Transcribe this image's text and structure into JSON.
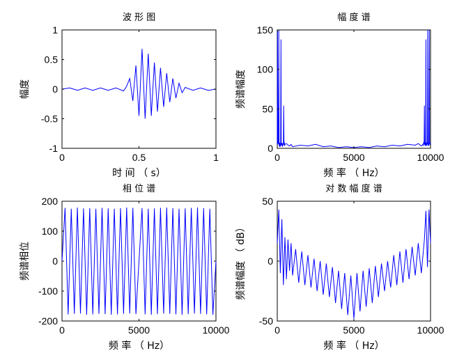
{
  "chart_data": [
    {
      "type": "line",
      "title": "波 形 图",
      "xlabel": "时 间 （ s）",
      "ylabel": "幅度",
      "xlim": [
        0,
        1
      ],
      "ylim": [
        -1,
        1
      ],
      "xticks": [
        "0",
        "0.5",
        "1"
      ],
      "xtick_values": [
        0,
        0.5,
        1
      ],
      "yticks": [
        "1",
        "0.5",
        "0",
        "-0.5",
        "-1"
      ],
      "ytick_values": [
        1,
        0.5,
        0,
        -0.5,
        -1
      ],
      "color": "#0000ff",
      "series": [
        {
          "x": [
            0,
            0.05,
            0.1,
            0.15,
            0.2,
            0.25,
            0.3,
            0.35,
            0.4,
            0.42,
            0.44,
            0.46,
            0.48,
            0.5,
            0.52,
            0.54,
            0.56,
            0.58,
            0.6,
            0.62,
            0.64,
            0.66,
            0.68,
            0.7,
            0.72,
            0.74,
            0.76,
            0.78,
            0.8,
            0.85,
            0.9,
            0.95,
            1
          ],
          "y": [
            0.0,
            0.02,
            -0.02,
            0.02,
            -0.02,
            0.02,
            -0.02,
            0.02,
            -0.03,
            0.05,
            0.18,
            -0.2,
            0.4,
            -0.45,
            0.68,
            -0.5,
            0.6,
            -0.45,
            0.45,
            -0.38,
            0.36,
            -0.3,
            0.27,
            -0.22,
            0.18,
            -0.15,
            0.1,
            -0.06,
            0.03,
            -0.02,
            0.02,
            -0.02,
            0.0
          ]
        }
      ]
    },
    {
      "type": "line",
      "title": "幅 度 谱",
      "xlabel": "频 率 （ Hz）",
      "ylabel": "频谱幅度",
      "xlim": [
        0,
        10000
      ],
      "ylim": [
        0,
        150
      ],
      "xticks": [
        "0",
        "5000",
        "10000"
      ],
      "xtick_values": [
        0,
        5000,
        10000
      ],
      "yticks": [
        "150",
        "100",
        "50",
        "0"
      ],
      "ytick_values": [
        150,
        100,
        50,
        0
      ],
      "color": "#0000ff",
      "series": [
        {
          "x": [
            0,
            20,
            40,
            60,
            80,
            100,
            120,
            140,
            160,
            180,
            200,
            220,
            240,
            260,
            280,
            300,
            320,
            340,
            360,
            380,
            400,
            420,
            440,
            460,
            480,
            500,
            600,
            700,
            800,
            900,
            1000,
            1500,
            2000,
            2500,
            3000,
            3500,
            4000,
            4500,
            5000,
            5500,
            6000,
            6500,
            7000,
            7500,
            8000,
            8500,
            9000,
            9200,
            9400,
            9500,
            9520,
            9540,
            9560,
            9580,
            9600,
            9620,
            9640,
            9660,
            9680,
            9700,
            9720,
            9740,
            9760,
            9780,
            9800,
            9820,
            9840,
            9860,
            9880,
            9900,
            9920,
            9940,
            9960,
            9980,
            10000
          ],
          "y": [
            5,
            150,
            5,
            8,
            6,
            150,
            4,
            3,
            7,
            2,
            3,
            6,
            138,
            4,
            5,
            3,
            7,
            2,
            4,
            5,
            6,
            54,
            4,
            8,
            3,
            5,
            6,
            4,
            3,
            5,
            2,
            4,
            3,
            5,
            2,
            3,
            1,
            2,
            1,
            2,
            1,
            3,
            2,
            4,
            3,
            5,
            4,
            6,
            3,
            5,
            4,
            6,
            8,
            5,
            54,
            4,
            7,
            3,
            5,
            138,
            4,
            6,
            3,
            8,
            5,
            150,
            4,
            6,
            3,
            8,
            150,
            6,
            5,
            7,
            5
          ]
        }
      ]
    },
    {
      "type": "line",
      "title": "相 位 谱",
      "xlabel": "频 率 （ Hz）",
      "ylabel": "频谱相位",
      "xlim": [
        0,
        10000
      ],
      "ylim": [
        -200,
        200
      ],
      "xticks": [
        "0",
        "5000",
        "10000"
      ],
      "xtick_values": [
        0,
        5000,
        10000
      ],
      "yticks": [
        "200",
        "100",
        "0",
        "-100",
        "-200"
      ],
      "ytick_values": [
        200,
        100,
        0,
        -100,
        -200
      ],
      "color": "#0000ff",
      "series": [
        {
          "x": [
            0,
            200,
            400,
            600,
            800,
            1000,
            1200,
            1400,
            1600,
            1800,
            2000,
            2200,
            2400,
            2600,
            2800,
            3000,
            3200,
            3400,
            3600,
            3800,
            4000,
            4200,
            4400,
            4600,
            4800,
            5000,
            5200,
            5400,
            5600,
            5800,
            6000,
            6200,
            6400,
            6600,
            6800,
            7000,
            7200,
            7400,
            7600,
            7800,
            8000,
            8200,
            8400,
            8600,
            8800,
            9000,
            9200,
            9400,
            9600,
            9800,
            10000
          ],
          "y": [
            0,
            178,
            -178,
            175,
            -176,
            179,
            -175,
            176,
            -179,
            177,
            -178,
            175,
            -176,
            178,
            -177,
            176,
            -179,
            175,
            -178,
            177,
            -176,
            179,
            -175,
            178,
            -177,
            0,
            177,
            -178,
            175,
            -179,
            176,
            -177,
            178,
            -175,
            179,
            -176,
            177,
            -178,
            175,
            -179,
            176,
            -177,
            178,
            -175,
            179,
            -176,
            177,
            -178,
            175,
            -179,
            0
          ]
        }
      ]
    },
    {
      "type": "line",
      "title": "对 数 幅 度 谱",
      "xlabel": "频 率 （ Hz）",
      "ylabel": "频谱幅度 （ dB）",
      "xlim": [
        0,
        10000
      ],
      "ylim": [
        -50,
        50
      ],
      "xticks": [
        "0",
        "5000",
        "10000"
      ],
      "xtick_values": [
        0,
        5000,
        10000
      ],
      "yticks": [
        "50",
        "0",
        "-50"
      ],
      "ytick_values": [
        50,
        0,
        -50
      ],
      "color": "#0000ff",
      "series": [
        {
          "x": [
            0,
            100,
            200,
            300,
            400,
            500,
            600,
            700,
            800,
            900,
            1000,
            1200,
            1400,
            1600,
            1800,
            2000,
            2200,
            2400,
            2600,
            2800,
            3000,
            3200,
            3400,
            3600,
            3800,
            4000,
            4200,
            4400,
            4600,
            4800,
            5000,
            5200,
            5400,
            5600,
            5800,
            6000,
            6200,
            6400,
            6600,
            6800,
            7000,
            7200,
            7400,
            7600,
            7800,
            8000,
            8200,
            8400,
            8600,
            8800,
            9000,
            9200,
            9400,
            9600,
            9700,
            9800,
            9900,
            10000
          ],
          "y": [
            15,
            43,
            -10,
            35,
            -20,
            20,
            -15,
            18,
            -8,
            15,
            -12,
            10,
            -18,
            8,
            -20,
            5,
            -22,
            2,
            -25,
            0,
            -28,
            -2,
            -30,
            -5,
            -35,
            -8,
            -40,
            -10,
            -45,
            -12,
            -48,
            -10,
            -42,
            -8,
            -38,
            -6,
            -35,
            -4,
            -30,
            -2,
            -25,
            0,
            -22,
            5,
            -20,
            8,
            -18,
            10,
            -15,
            12,
            -12,
            15,
            -10,
            18,
            42,
            -5,
            43,
            15
          ]
        }
      ]
    }
  ]
}
